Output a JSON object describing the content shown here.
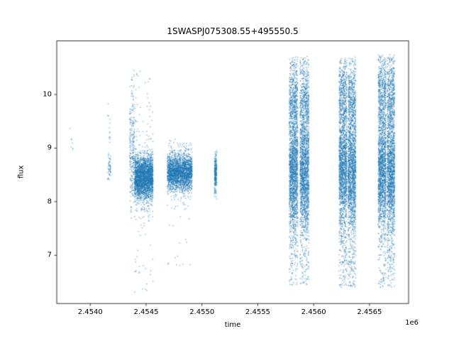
{
  "chart_data": {
    "type": "scatter",
    "title": "1SWASPJ075308.55+495550.5",
    "xlabel": "time",
    "ylabel": "flux",
    "x_offset_label": "1e6",
    "xlim": [
      2453700,
      2456850
    ],
    "ylim": [
      6.1,
      11.0
    ],
    "xticks": [
      2454000,
      2454500,
      2455000,
      2455500,
      2456000,
      2456500
    ],
    "xtick_labels": [
      "2.4540",
      "2.4545",
      "2.4550",
      "2.4555",
      "2.4560",
      "2.4565"
    ],
    "yticks": [
      7,
      8,
      9,
      10
    ],
    "ytick_labels": [
      "7",
      "8",
      "9",
      "10"
    ],
    "grid": false,
    "legend": false,
    "marker": {
      "color": "#1f77b4",
      "alpha": 0.55,
      "size": 1.4
    },
    "seed": 7,
    "clusters": [
      {
        "x0": 2453818,
        "x1": 2453852,
        "n": 7,
        "clip": [
          8.85,
          9.4
        ],
        "components": [
          {
            "frac": 1.0,
            "type": "uniform",
            "min": 8.9,
            "max": 9.38
          }
        ]
      },
      {
        "x0": 2454156,
        "x1": 2454184,
        "n": 65,
        "clip": [
          8.35,
          9.85
        ],
        "components": [
          {
            "frac": 0.7,
            "type": "gauss",
            "mean": 8.62,
            "sigma": 0.15
          },
          {
            "frac": 0.3,
            "type": "uniform",
            "min": 8.4,
            "max": 9.85
          }
        ]
      },
      {
        "x0": 2454352,
        "x1": 2454396,
        "n": 260,
        "clip": [
          7.6,
          10.5
        ],
        "components": [
          {
            "frac": 0.75,
            "type": "gauss",
            "mean": 8.95,
            "sigma": 0.5
          },
          {
            "frac": 0.25,
            "type": "uniform",
            "min": 8.1,
            "max": 10.45
          }
        ]
      },
      {
        "x0": 2454398,
        "x1": 2454562,
        "n": 2600,
        "clip": [
          6.25,
          10.45
        ],
        "components": [
          {
            "frac": 0.925,
            "type": "gauss",
            "mean": 8.45,
            "sigma": 0.2
          },
          {
            "frac": 0.055,
            "type": "uniform",
            "min": 7.55,
            "max": 9.7
          },
          {
            "frac": 0.012,
            "type": "uniform",
            "min": 6.3,
            "max": 7.55
          },
          {
            "frac": 0.008,
            "type": "uniform",
            "min": 9.7,
            "max": 10.45
          }
        ]
      },
      {
        "x0": 2454690,
        "x1": 2454912,
        "n": 2400,
        "clip": [
          6.4,
          9.3
        ],
        "components": [
          {
            "frac": 0.95,
            "type": "gauss",
            "mean": 8.55,
            "sigma": 0.16
          },
          {
            "frac": 0.042,
            "type": "uniform",
            "min": 7.9,
            "max": 9.15
          },
          {
            "frac": 0.008,
            "type": "uniform",
            "min": 6.45,
            "max": 7.9
          }
        ]
      },
      {
        "x0": 2455112,
        "x1": 2455132,
        "n": 260,
        "clip": [
          8.05,
          9.0
        ],
        "components": [
          {
            "frac": 0.85,
            "type": "gauss",
            "mean": 8.52,
            "sigma": 0.18
          },
          {
            "frac": 0.15,
            "type": "uniform",
            "min": 8.15,
            "max": 8.95
          }
        ]
      },
      {
        "x0": 2455782,
        "x1": 2455858,
        "n": 2100,
        "clip": [
          6.4,
          10.72
        ],
        "components": [
          {
            "frac": 0.6,
            "type": "gauss",
            "mean": 8.55,
            "sigma": 0.52
          },
          {
            "frac": 0.18,
            "type": "gauss",
            "mean": 9.9,
            "sigma": 0.35
          },
          {
            "frac": 0.22,
            "type": "uniform",
            "min": 6.45,
            "max": 10.7
          }
        ]
      },
      {
        "x0": 2455878,
        "x1": 2455958,
        "n": 2100,
        "clip": [
          6.4,
          10.72
        ],
        "components": [
          {
            "frac": 0.6,
            "type": "gauss",
            "mean": 8.5,
            "sigma": 0.52
          },
          {
            "frac": 0.18,
            "type": "gauss",
            "mean": 9.85,
            "sigma": 0.35
          },
          {
            "frac": 0.22,
            "type": "uniform",
            "min": 6.45,
            "max": 10.7
          }
        ]
      },
      {
        "x0": 2456228,
        "x1": 2456298,
        "n": 1900,
        "clip": [
          6.35,
          10.7
        ],
        "components": [
          {
            "frac": 0.6,
            "type": "gauss",
            "mean": 8.6,
            "sigma": 0.5
          },
          {
            "frac": 0.18,
            "type": "gauss",
            "mean": 9.95,
            "sigma": 0.33
          },
          {
            "frac": 0.22,
            "type": "uniform",
            "min": 6.4,
            "max": 10.68
          }
        ]
      },
      {
        "x0": 2456308,
        "x1": 2456378,
        "n": 1900,
        "clip": [
          6.35,
          10.7
        ],
        "components": [
          {
            "frac": 0.6,
            "type": "gauss",
            "mean": 8.55,
            "sigma": 0.5
          },
          {
            "frac": 0.18,
            "type": "gauss",
            "mean": 9.9,
            "sigma": 0.33
          },
          {
            "frac": 0.22,
            "type": "uniform",
            "min": 6.4,
            "max": 10.68
          }
        ]
      },
      {
        "x0": 2456578,
        "x1": 2456648,
        "n": 1900,
        "clip": [
          6.35,
          10.75
        ],
        "components": [
          {
            "frac": 0.6,
            "type": "gauss",
            "mean": 8.55,
            "sigma": 0.52
          },
          {
            "frac": 0.18,
            "type": "gauss",
            "mean": 10.0,
            "sigma": 0.35
          },
          {
            "frac": 0.22,
            "type": "uniform",
            "min": 6.4,
            "max": 10.72
          }
        ]
      },
      {
        "x0": 2456658,
        "x1": 2456726,
        "n": 1900,
        "clip": [
          6.35,
          10.75
        ],
        "components": [
          {
            "frac": 0.6,
            "type": "gauss",
            "mean": 8.5,
            "sigma": 0.52
          },
          {
            "frac": 0.18,
            "type": "gauss",
            "mean": 9.95,
            "sigma": 0.35
          },
          {
            "frac": 0.22,
            "type": "uniform",
            "min": 6.4,
            "max": 10.72
          }
        ]
      }
    ]
  }
}
